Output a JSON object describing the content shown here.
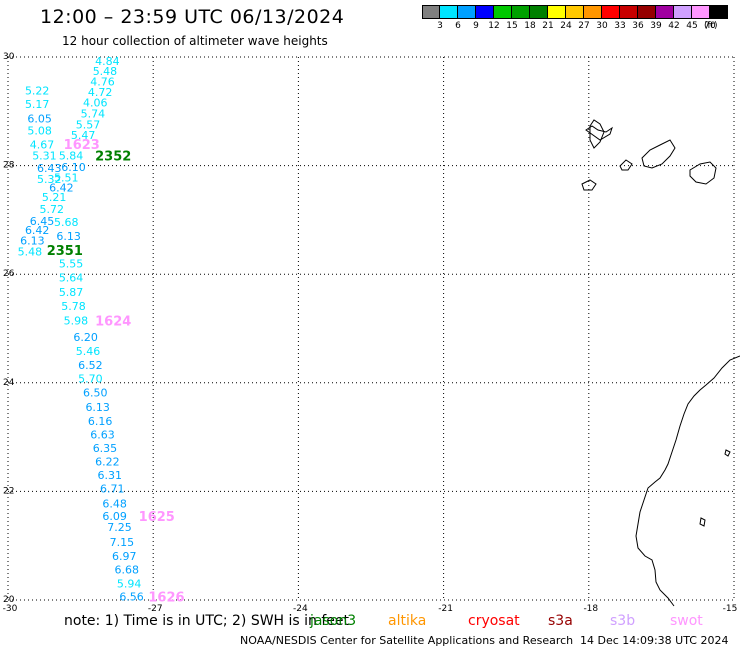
{
  "header": {
    "title": "12:00 – 23:59 UTC 06/13/2024",
    "subtitle": "12 hour collection of altimeter wave heights"
  },
  "colorbar": {
    "colors": [
      "#808080",
      "#00e5ff",
      "#00a0ff",
      "#0000ff",
      "#00c800",
      "#00a000",
      "#008000",
      "#ffff00",
      "#ffc800",
      "#ff9600",
      "#ff0000",
      "#c80000",
      "#960000",
      "#a000a0",
      "#d0a0ff",
      "#ff96ff",
      "#000000"
    ],
    "labels": [
      "3",
      "6",
      "9",
      "12",
      "15",
      "18",
      "21",
      "24",
      "27",
      "30",
      "33",
      "36",
      "39",
      "42",
      "45",
      "70"
    ],
    "unit": "(ft)"
  },
  "axes": {
    "lon_labels": [
      "-30",
      "-27",
      "-24",
      "-21",
      "-18",
      "-15"
    ],
    "lat_labels": [
      "30",
      "28",
      "26",
      "24",
      "22",
      "20"
    ]
  },
  "track": {
    "wave_heights": [
      {
        "value": "4.84",
        "lon": -28.2,
        "lat": 29.93,
        "color": "#00e5ff"
      },
      {
        "value": "5.48",
        "lon": -28.25,
        "lat": 29.74,
        "color": "#00e5ff"
      },
      {
        "value": "4.76",
        "lon": -28.3,
        "lat": 29.55,
        "color": "#00e5ff"
      },
      {
        "value": "5.22",
        "lon": -29.65,
        "lat": 29.38,
        "color": "#00e5ff"
      },
      {
        "value": "4.72",
        "lon": -28.35,
        "lat": 29.36,
        "color": "#00e5ff"
      },
      {
        "value": "5.17",
        "lon": -29.65,
        "lat": 29.13,
        "color": "#00e5ff"
      },
      {
        "value": "4.06",
        "lon": -28.45,
        "lat": 29.16,
        "color": "#00e5ff"
      },
      {
        "value": "6.05",
        "lon": -29.6,
        "lat": 28.87,
        "color": "#00a0ff"
      },
      {
        "value": "5.74",
        "lon": -28.5,
        "lat": 28.96,
        "color": "#00e5ff"
      },
      {
        "value": "5.57",
        "lon": -28.6,
        "lat": 28.76,
        "color": "#00e5ff"
      },
      {
        "value": "5.08",
        "lon": -29.6,
        "lat": 28.65,
        "color": "#00e5ff"
      },
      {
        "value": "5.47",
        "lon": -28.7,
        "lat": 28.56,
        "color": "#00e5ff"
      },
      {
        "value": "4.67",
        "lon": -29.55,
        "lat": 28.39,
        "color": "#00e5ff"
      },
      {
        "value": "5.31",
        "lon": -29.5,
        "lat": 28.19,
        "color": "#00e5ff"
      },
      {
        "value": "5.84",
        "lon": -28.95,
        "lat": 28.19,
        "color": "#00e5ff"
      },
      {
        "value": "6.10",
        "lon": -28.9,
        "lat": 27.97,
        "color": "#00a0ff"
      },
      {
        "value": "6.43",
        "lon": -29.4,
        "lat": 27.96,
        "color": "#00a0ff"
      },
      {
        "value": "5.51",
        "lon": -29.05,
        "lat": 27.78,
        "color": "#00e5ff"
      },
      {
        "value": "5.32",
        "lon": -29.4,
        "lat": 27.75,
        "color": "#00e5ff"
      },
      {
        "value": "6.42",
        "lon": -29.15,
        "lat": 27.6,
        "color": "#00a0ff"
      },
      {
        "value": "5.21",
        "lon": -29.3,
        "lat": 27.42,
        "color": "#00e5ff"
      },
      {
        "value": "5.72",
        "lon": -29.35,
        "lat": 27.2,
        "color": "#00e5ff"
      },
      {
        "value": "6.45",
        "lon": -29.55,
        "lat": 26.98,
        "color": "#00a0ff"
      },
      {
        "value": "5.68",
        "lon": -29.05,
        "lat": 26.96,
        "color": "#00e5ff"
      },
      {
        "value": "6.42",
        "lon": -29.65,
        "lat": 26.81,
        "color": "#00a0ff"
      },
      {
        "value": "6.13",
        "lon": -29.75,
        "lat": 26.62,
        "color": "#00a0ff"
      },
      {
        "value": "6.13",
        "lon": -29.0,
        "lat": 26.7,
        "color": "#00a0ff"
      },
      {
        "value": "5.48",
        "lon": -29.8,
        "lat": 26.42,
        "color": "#00e5ff"
      },
      {
        "value": "5.55",
        "lon": -28.95,
        "lat": 26.2,
        "color": "#00e5ff"
      },
      {
        "value": "5.64",
        "lon": -28.95,
        "lat": 25.94,
        "color": "#00e5ff"
      },
      {
        "value": "5.87",
        "lon": -28.95,
        "lat": 25.67,
        "color": "#00e5ff"
      },
      {
        "value": "5.78",
        "lon": -28.9,
        "lat": 25.41,
        "color": "#00e5ff"
      },
      {
        "value": "5.98",
        "lon": -28.85,
        "lat": 25.15,
        "color": "#00e5ff"
      },
      {
        "value": "6.20",
        "lon": -28.65,
        "lat": 24.84,
        "color": "#00a0ff"
      },
      {
        "value": "5.46",
        "lon": -28.6,
        "lat": 24.59,
        "color": "#00e5ff"
      },
      {
        "value": "6.52",
        "lon": -28.55,
        "lat": 24.33,
        "color": "#00a0ff"
      },
      {
        "value": "5.70",
        "lon": -28.55,
        "lat": 24.08,
        "color": "#00e5ff"
      },
      {
        "value": "6.50",
        "lon": -28.45,
        "lat": 23.82,
        "color": "#00a0ff"
      },
      {
        "value": "6.13",
        "lon": -28.4,
        "lat": 23.55,
        "color": "#00a0ff"
      },
      {
        "value": "6.16",
        "lon": -28.35,
        "lat": 23.3,
        "color": "#00a0ff"
      },
      {
        "value": "6.63",
        "lon": -28.3,
        "lat": 23.05,
        "color": "#00a0ff"
      },
      {
        "value": "6.35",
        "lon": -28.25,
        "lat": 22.8,
        "color": "#00a0ff"
      },
      {
        "value": "6.22",
        "lon": -28.2,
        "lat": 22.55,
        "color": "#00a0ff"
      },
      {
        "value": "6.31",
        "lon": -28.15,
        "lat": 22.3,
        "color": "#00a0ff"
      },
      {
        "value": "6.71",
        "lon": -28.1,
        "lat": 22.05,
        "color": "#00a0ff"
      },
      {
        "value": "6.48",
        "lon": -28.05,
        "lat": 21.78,
        "color": "#00a0ff"
      },
      {
        "value": "6.09",
        "lon": -28.05,
        "lat": 21.55,
        "color": "#00a0ff"
      },
      {
        "value": "7.25",
        "lon": -27.95,
        "lat": 21.34,
        "color": "#00a0ff"
      },
      {
        "value": "7.15",
        "lon": -27.9,
        "lat": 21.07,
        "color": "#00a0ff"
      },
      {
        "value": "6.97",
        "lon": -27.85,
        "lat": 20.81,
        "color": "#00a0ff"
      },
      {
        "value": "6.68",
        "lon": -27.8,
        "lat": 20.56,
        "color": "#00a0ff"
      },
      {
        "value": "5.94",
        "lon": -27.75,
        "lat": 20.3,
        "color": "#00e5ff"
      },
      {
        "value": "6.56",
        "lon": -27.7,
        "lat": 20.06,
        "color": "#00a0ff"
      }
    ],
    "time_labels": [
      {
        "value": "1623",
        "lon": -28.85,
        "lat": 28.4,
        "color": "#ff96ff"
      },
      {
        "value": "2352",
        "lon": -28.2,
        "lat": 28.19,
        "color": "#008000"
      },
      {
        "value": "2351",
        "lon": -29.2,
        "lat": 26.45,
        "color": "#008000"
      },
      {
        "value": "1624",
        "lon": -28.2,
        "lat": 25.15,
        "color": "#ff96ff"
      },
      {
        "value": "1625",
        "lon": -27.3,
        "lat": 21.55,
        "color": "#ff96ff"
      },
      {
        "value": "1626",
        "lon": -27.1,
        "lat": 20.06,
        "color": "#ff96ff"
      }
    ]
  },
  "footer": {
    "note": "note: 1) Time is in UTC; 2) SWH is in feet",
    "satellites": [
      {
        "name": "jason3",
        "color": "#008000"
      },
      {
        "name": "altika",
        "color": "#ff9600"
      },
      {
        "name": "cryosat",
        "color": "#ff0000"
      },
      {
        "name": "s3a",
        "color": "#960000"
      },
      {
        "name": "s3b",
        "color": "#d0a0ff"
      },
      {
        "name": "swot",
        "color": "#ff96ff"
      }
    ],
    "credit": "NOAA/NESDIS Center for Satellite Applications and Research",
    "timestamp": "14 Dec 14:09:38 UTC 2024"
  }
}
